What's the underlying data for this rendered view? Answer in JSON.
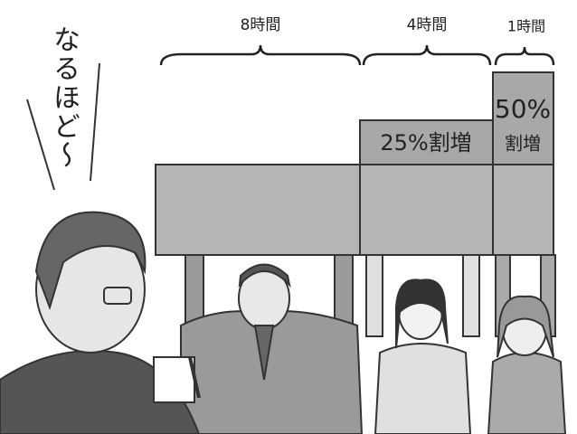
{
  "labels": {
    "eight_hours": "8時間",
    "four_hours": "4時間",
    "one_hour": "1時間"
  },
  "boxes": {
    "premium_25": "25%割増",
    "premium_50_rate": "50%",
    "premium_50_word": "割増"
  },
  "exclamation": "なるほど〜"
}
